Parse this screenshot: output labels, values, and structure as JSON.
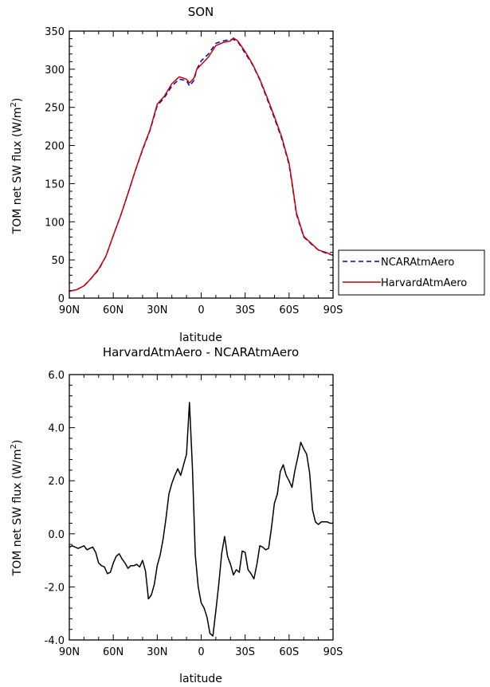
{
  "chart_data": [
    {
      "type": "line",
      "title": "SON",
      "xlabel": "latitude",
      "ylabel": "TOM net SW flux (W/m²)",
      "ylabel_parts": [
        "TOM net SW flux (W/m",
        "2",
        ")"
      ],
      "x_tick_values": [
        90,
        60,
        30,
        0,
        -30,
        -60,
        -90
      ],
      "x_tick_labels": [
        "90N",
        "60N",
        "30N",
        "0",
        "30S",
        "60S",
        "90S"
      ],
      "xlim": [
        90,
        -90
      ],
      "ylim": [
        0,
        350
      ],
      "y_tick_values": [
        0,
        50,
        100,
        150,
        200,
        250,
        300,
        350
      ],
      "y_tick_labels": [
        "0",
        "50",
        "100",
        "150",
        "200",
        "250",
        "300",
        "350"
      ],
      "legend_position": "right",
      "x": [
        90,
        85,
        80,
        75,
        70,
        65,
        60,
        55,
        50,
        45,
        40,
        35,
        30,
        25,
        20,
        15,
        10,
        8,
        5,
        3,
        0,
        -5,
        -10,
        -15,
        -20,
        -22,
        -25,
        -30,
        -35,
        -40,
        -45,
        -50,
        -55,
        -60,
        -62,
        -65,
        -70,
        -75,
        -80,
        -85,
        -90
      ],
      "series": [
        {
          "name": "NCARAtmAero",
          "color": "#0000cc",
          "dash": "dashed",
          "values": [
            9,
            11,
            16,
            26,
            37,
            55,
            82,
            108,
            137,
            167,
            194,
            219,
            252,
            263,
            278,
            287,
            285,
            278,
            285,
            300,
            311,
            320,
            334,
            337,
            339,
            339,
            336,
            321,
            306,
            286,
            261,
            236,
            209,
            175,
            150,
            110,
            80,
            71,
            63,
            59,
            56
          ]
        },
        {
          "name": "HarvardAtmAero",
          "color": "#cc0000",
          "dash": "solid",
          "values": [
            9,
            11,
            16,
            26,
            38,
            55,
            82,
            108,
            137,
            167,
            195,
            220,
            254,
            265,
            281,
            290,
            287,
            282,
            288,
            300,
            306,
            316,
            331,
            335,
            337,
            341,
            337,
            323,
            307,
            287,
            263,
            238,
            211,
            177,
            152,
            112,
            81,
            72,
            63,
            60,
            56
          ]
        }
      ]
    },
    {
      "type": "line",
      "title": "HarvardAtmAero - NCARAtmAero",
      "xlabel": "latitude",
      "ylabel": "TOM net SW flux (W/m²)",
      "ylabel_parts": [
        "TOM net SW flux (W/m",
        "2",
        ")"
      ],
      "x_tick_values": [
        90,
        60,
        30,
        0,
        -30,
        -60,
        -90
      ],
      "x_tick_labels": [
        "90N",
        "60N",
        "30N",
        "0",
        "30S",
        "60S",
        "90S"
      ],
      "xlim": [
        90,
        -90
      ],
      "ylim": [
        -4,
        6
      ],
      "y_tick_values": [
        -4,
        -2,
        0,
        2,
        4,
        6
      ],
      "y_tick_labels": [
        "-4.0",
        "-2.0",
        "0.0",
        "2.0",
        "4.0",
        "6.0"
      ],
      "series": [
        {
          "name": "",
          "color": "#000000",
          "dash": "solid",
          "x": [
            90,
            88,
            86,
            84,
            82,
            80,
            78,
            76,
            74,
            72,
            70,
            68,
            66,
            64,
            62,
            60,
            58,
            56,
            54,
            52,
            50,
            48,
            46,
            44,
            42,
            40,
            38,
            36,
            34,
            32,
            30,
            28,
            26,
            24,
            22,
            20,
            18,
            16,
            14,
            12,
            10,
            8,
            6,
            4,
            2,
            0,
            -2,
            -4,
            -6,
            -8,
            -10,
            -12,
            -14,
            -16,
            -18,
            -20,
            -22,
            -24,
            -26,
            -28,
            -30,
            -32,
            -34,
            -36,
            -38,
            -40,
            -42,
            -44,
            -46,
            -48,
            -50,
            -52,
            -54,
            -56,
            -58,
            -60,
            -62,
            -64,
            -66,
            -68,
            -70,
            -72,
            -74,
            -76,
            -78,
            -80,
            -82,
            -84,
            -86,
            -88,
            -90
          ],
          "values": [
            -0.5,
            -0.45,
            -0.5,
            -0.55,
            -0.5,
            -0.45,
            -0.6,
            -0.55,
            -0.5,
            -0.7,
            -1.1,
            -1.2,
            -1.25,
            -1.5,
            -1.45,
            -1.1,
            -0.85,
            -0.75,
            -0.95,
            -1.1,
            -1.3,
            -1.2,
            -1.2,
            -1.15,
            -1.25,
            -1.0,
            -1.4,
            -2.45,
            -2.3,
            -1.9,
            -1.2,
            -0.8,
            -0.2,
            0.6,
            1.5,
            1.9,
            2.2,
            2.45,
            2.2,
            2.6,
            3.0,
            4.95,
            2.5,
            -0.8,
            -2.0,
            -2.6,
            -2.8,
            -3.15,
            -3.75,
            -3.85,
            -2.9,
            -1.9,
            -0.75,
            -0.1,
            -0.85,
            -1.15,
            -1.55,
            -1.35,
            -1.45,
            -0.65,
            -0.7,
            -1.35,
            -1.5,
            -1.7,
            -1.15,
            -0.45,
            -0.5,
            -0.6,
            -0.55,
            0.25,
            1.15,
            1.5,
            2.35,
            2.6,
            2.2,
            2.0,
            1.75,
            2.4,
            2.9,
            3.45,
            3.2,
            3.0,
            2.3,
            0.9,
            0.45,
            0.35,
            0.45,
            0.45,
            0.45,
            0.4,
            0.4
          ]
        }
      ]
    }
  ]
}
